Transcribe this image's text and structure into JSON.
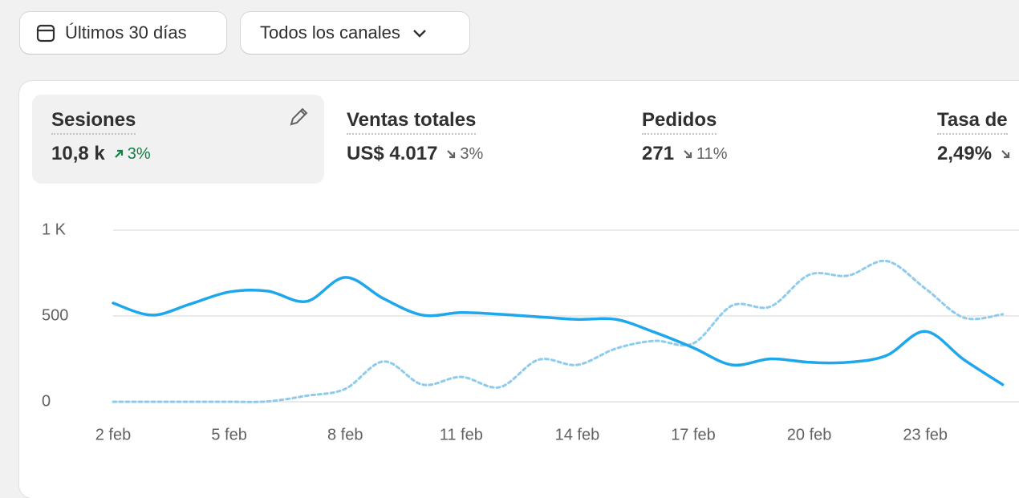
{
  "toolbar": {
    "date_button": "Últimos 30 días",
    "channel_button": "Todos los canales"
  },
  "metrics": [
    {
      "label": "Sesiones",
      "value": "10,8 k",
      "change": "3%"
    },
    {
      "label": "Ventas totales",
      "value": "US$ 4.017",
      "change": "3%"
    },
    {
      "label": "Pedidos",
      "value": "271",
      "change": "11%"
    },
    {
      "label": "Tasa de",
      "value": "2,49%"
    }
  ],
  "chart_data": {
    "type": "line",
    "categories": [
      "2 feb",
      null,
      null,
      "5 feb",
      null,
      null,
      "8 feb",
      null,
      null,
      "11 feb",
      null,
      null,
      "14 feb",
      null,
      null,
      "17 feb",
      null,
      null,
      "20 feb",
      null,
      null,
      "23 feb",
      null,
      null
    ],
    "series": [
      {
        "color": "#1ea7ec",
        "dashed": false,
        "values": [
          575,
          505,
          570,
          640,
          645,
          585,
          725,
          600,
          505,
          520,
          510,
          495,
          480,
          480,
          405,
          315,
          215,
          250,
          230,
          230,
          270,
          410,
          245,
          100
        ]
      },
      {
        "color": "#8ecbec",
        "dashed": true,
        "values": [
          0,
          0,
          0,
          0,
          2,
          35,
          75,
          235,
          100,
          145,
          85,
          245,
          215,
          310,
          355,
          340,
          560,
          555,
          740,
          735,
          820,
          660,
          490,
          510
        ]
      }
    ],
    "ylim": [
      0,
      1000
    ],
    "yticks": [
      0,
      500,
      {
        "value": 1000,
        "label": "1 K"
      }
    ],
    "grid": true
  }
}
